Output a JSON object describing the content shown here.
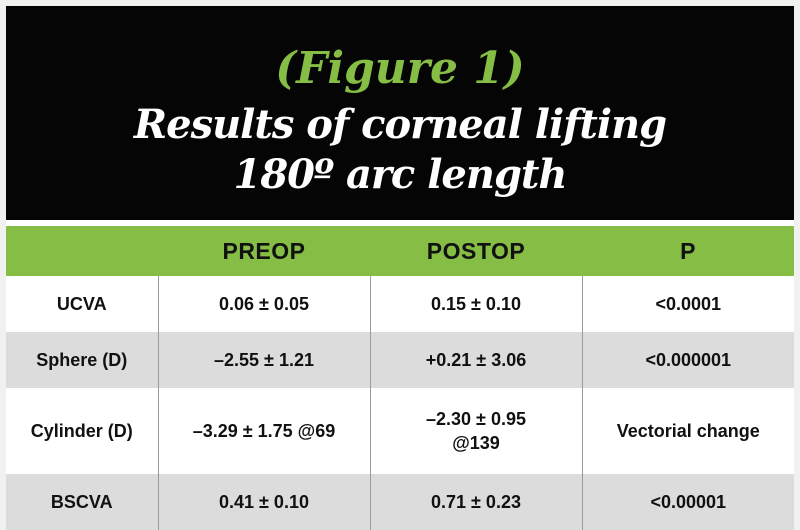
{
  "header": {
    "figure_label": "(Figure 1)",
    "title_line1": "Results of corneal lifting",
    "title_line2": "180º arc length"
  },
  "table": {
    "columns": [
      "",
      "PREOP",
      "POSTOP",
      "P"
    ],
    "rows": [
      {
        "label": "UCVA",
        "preop": "0.06 ± 0.05",
        "postop": "0.15 ± 0.10",
        "p": "<0.0001"
      },
      {
        "label": "Sphere (D)",
        "preop": "–2.55 ± 1.21",
        "postop": "+0.21 ± 3.06",
        "p": "<0.000001"
      },
      {
        "label": "Cylinder (D)",
        "preop": "–3.29 ± 1.75 @69",
        "postop_line1": "–2.30 ± 0.95",
        "postop_line2": "@139",
        "p": "Vectorial change"
      },
      {
        "label": "BSCVA",
        "preop": "0.41 ± 0.10",
        "postop": "0.71 ± 0.23",
        "p": "<0.00001"
      }
    ]
  },
  "colors": {
    "accent_green": "#86bd45",
    "header_bg": "#050505",
    "stripe_gray": "#dcdcdc"
  }
}
